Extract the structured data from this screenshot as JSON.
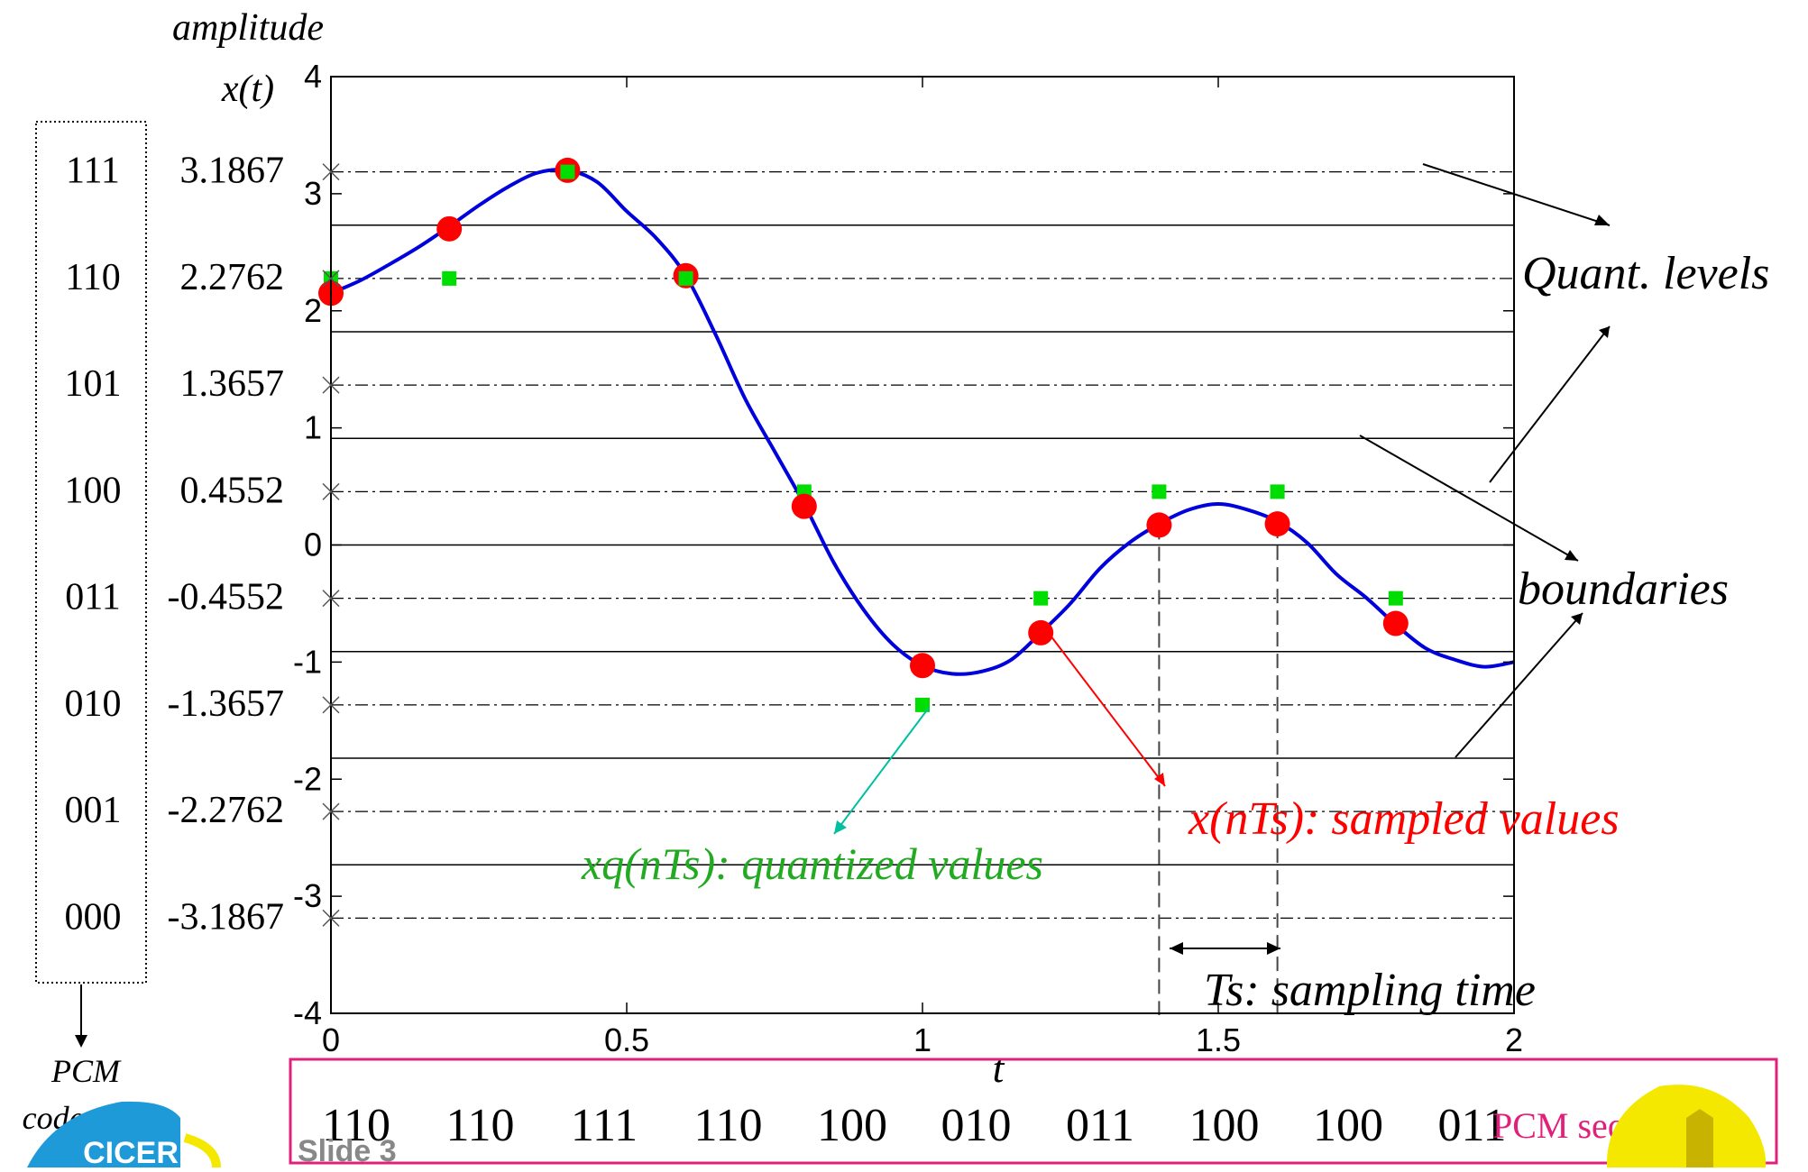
{
  "chart_data": {
    "type": "line",
    "ylabel_top": "amplitude",
    "ylabel": "x(t)",
    "xlabel": "t",
    "xlim": [
      0,
      2
    ],
    "ylim": [
      -4,
      4
    ],
    "x_ticks": [
      {
        "value": 0,
        "label": "0"
      },
      {
        "value": 0.5,
        "label": "0.5"
      },
      {
        "value": 1,
        "label": "1"
      },
      {
        "value": 1.5,
        "label": "1.5"
      },
      {
        "value": 2,
        "label": "2"
      }
    ],
    "y_ticks": [
      {
        "value": 4,
        "label": "4"
      },
      {
        "value": 3,
        "label": "3"
      },
      {
        "value": 2,
        "label": "2"
      },
      {
        "value": 1,
        "label": "1"
      },
      {
        "value": 0,
        "label": "0"
      },
      {
        "value": -1,
        "label": "-1"
      },
      {
        "value": -2,
        "label": "-2"
      },
      {
        "value": -3,
        "label": "-3"
      },
      {
        "value": -4,
        "label": "-4"
      }
    ],
    "quant_levels": [
      {
        "code": "111",
        "label": "3.1867",
        "value": 3.1867
      },
      {
        "code": "110",
        "label": "2.2762",
        "value": 2.2762
      },
      {
        "code": "101",
        "label": "1.3657",
        "value": 1.3657
      },
      {
        "code": "100",
        "label": "0.4552",
        "value": 0.4552
      },
      {
        "code": "011",
        "label": "-0.4552",
        "value": -0.4552
      },
      {
        "code": "010",
        "label": "-1.3657",
        "value": -1.3657
      },
      {
        "code": "001",
        "label": "-2.2762",
        "value": -2.2762
      },
      {
        "code": "000",
        "label": "-3.1867",
        "value": -3.1867
      }
    ],
    "boundaries": [
      2.7314,
      1.821,
      0.9105,
      0,
      -0.9105,
      -1.821,
      -2.7314
    ],
    "signal": {
      "x": [
        0,
        0.05,
        0.1,
        0.15,
        0.2,
        0.25,
        0.3,
        0.35,
        0.4,
        0.45,
        0.5,
        0.55,
        0.6,
        0.65,
        0.7,
        0.75,
        0.8,
        0.85,
        0.9,
        0.95,
        1.0,
        1.05,
        1.1,
        1.15,
        1.2,
        1.25,
        1.3,
        1.35,
        1.4,
        1.45,
        1.5,
        1.55,
        1.6,
        1.65,
        1.7,
        1.75,
        1.8,
        1.85,
        1.9,
        1.95,
        2.0
      ],
      "y": [
        2.15,
        2.26,
        2.4,
        2.55,
        2.72,
        2.9,
        3.06,
        3.18,
        3.2,
        3.1,
        2.85,
        2.62,
        2.3,
        1.8,
        1.25,
        0.8,
        0.35,
        -0.15,
        -0.55,
        -0.85,
        -1.03,
        -1.1,
        -1.08,
        -0.98,
        -0.75,
        -0.5,
        -0.2,
        0.02,
        0.18,
        0.3,
        0.35,
        0.3,
        0.2,
        0.02,
        -0.25,
        -0.45,
        -0.68,
        -0.88,
        -0.98,
        -1.04,
        -1.0
      ]
    },
    "sampled": {
      "name": "x(nTs): sampled values",
      "x": [
        0,
        0.2,
        0.4,
        0.6,
        0.8,
        1.0,
        1.2,
        1.4,
        1.6,
        1.8
      ],
      "y": [
        2.15,
        2.7,
        3.2,
        2.3,
        0.33,
        -1.03,
        -0.75,
        0.17,
        0.18,
        -0.67
      ]
    },
    "quantized": {
      "name": "xq(nTs): quantized values",
      "x": [
        0,
        0.2,
        0.4,
        0.6,
        0.8,
        1.0,
        1.2,
        1.4,
        1.6,
        1.8
      ],
      "y": [
        2.2762,
        2.2762,
        3.1867,
        2.2762,
        0.4552,
        -1.3657,
        -0.4552,
        0.4552,
        0.4552,
        -0.4552
      ]
    },
    "annotations": {
      "quant_levels": "Quant. levels",
      "boundaries": "boundaries",
      "ts": "Ts: sampling time"
    },
    "ts_marks": [
      1.4,
      1.6
    ]
  },
  "pcm": {
    "codeword_label_1": "PCM",
    "codeword_label_2": "codeword",
    "sequence": [
      "110",
      "110",
      "111",
      "110",
      "100",
      "010",
      "011",
      "100",
      "100",
      "011"
    ],
    "sequence_label": "PCM sequence"
  },
  "footer": {
    "slide_label": "Slide 3",
    "logo_text": "CICER"
  },
  "colors": {
    "signal": "#0000dd",
    "sampled": "#ff0000",
    "quantized": "#00dd00",
    "quantized_label": "#22aa22",
    "quant_arrow": "#00c0a0",
    "pcm_box": "#e0207a",
    "pcm_label": "#e0207a",
    "logo_blue": "#1e9ad8",
    "logo_yellow": "#f5e800"
  }
}
